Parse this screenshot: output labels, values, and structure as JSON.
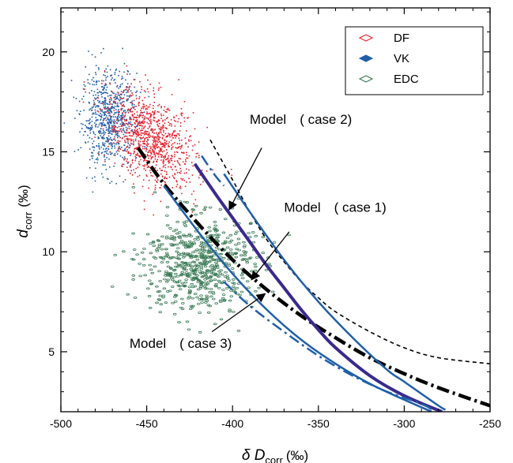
{
  "chart_data": {
    "type": "scatter",
    "xlabel": "δ D",
    "xlabel_sub": "corr",
    "xlabel_unit": "(‰)",
    "ylabel": "d",
    "ylabel_sub": "corr",
    "ylabel_unit": "(‰)",
    "xlim": [
      -500,
      -250
    ],
    "ylim": [
      2,
      22.2
    ],
    "x_ticks": [
      -500,
      -450,
      -400,
      -350,
      -300,
      -250
    ],
    "y_ticks": [
      5,
      10,
      15,
      20
    ],
    "grid": false,
    "legend_position": "top-right",
    "legend": [
      {
        "label": "DF",
        "marker": "open-diamond",
        "color": "#e8202a"
      },
      {
        "label": "VK",
        "marker": "filled-diamond",
        "color": "#1f5fa8"
      },
      {
        "label": "EDC",
        "marker": "open-diamond",
        "color": "#3a7a55"
      }
    ],
    "scatter_clusters": [
      {
        "series": "VK",
        "color": "#1f5fa8",
        "center": [
          -472,
          16.6
        ],
        "spread": [
          8,
          1.2
        ],
        "count": 750
      },
      {
        "series": "DF",
        "color": "#e8202a",
        "center": [
          -447,
          15.6
        ],
        "spread": [
          13,
          1.1
        ],
        "count": 1000
      },
      {
        "series": "EDC",
        "color": "#3a7a55",
        "center": [
          -420,
          9.4
        ],
        "spread": [
          16,
          1.2
        ],
        "count": 650
      }
    ],
    "model_lines": [
      {
        "name": "case 3",
        "style": "dashdot",
        "color": "#000000",
        "width": 4.5,
        "points": [
          [
            -455,
            15.2
          ],
          [
            -440,
            13.4
          ],
          [
            -420,
            11.4
          ],
          [
            -400,
            9.6
          ],
          [
            -380,
            8.1
          ],
          [
            -360,
            6.8
          ],
          [
            -340,
            5.7
          ],
          [
            -320,
            4.7
          ],
          [
            -300,
            3.9
          ],
          [
            -280,
            3.2
          ],
          [
            -250,
            2.3
          ]
        ]
      },
      {
        "name": "case 2",
        "style": "dashed",
        "color": "#000000",
        "width": 1.6,
        "points": [
          [
            -413,
            15.6
          ],
          [
            -400,
            13.6
          ],
          [
            -390,
            12.0
          ],
          [
            -380,
            10.6
          ],
          [
            -370,
            9.5
          ],
          [
            -360,
            8.5
          ],
          [
            -350,
            7.7
          ],
          [
            -340,
            7.0
          ],
          [
            -320,
            6.0
          ],
          [
            -300,
            5.2
          ],
          [
            -280,
            4.7
          ],
          [
            -250,
            4.4
          ]
        ]
      },
      {
        "name": "case 1",
        "style": "solid",
        "color": "#3a2a8c",
        "width": 4,
        "points": [
          [
            -422,
            14.4
          ],
          [
            -410,
            12.9
          ],
          [
            -400,
            11.7
          ],
          [
            -390,
            10.5
          ],
          [
            -380,
            9.3
          ],
          [
            -370,
            8.2
          ],
          [
            -360,
            7.1
          ],
          [
            -350,
            6.1
          ],
          [
            -340,
            5.2
          ],
          [
            -320,
            3.8
          ],
          [
            -300,
            2.8
          ],
          [
            -278,
            2.0
          ]
        ]
      },
      {
        "name": "blue-solid-lower",
        "style": "solid",
        "color": "#1f5fa8",
        "width": 2.5,
        "points": [
          [
            -440,
            13.3
          ],
          [
            -420,
            11.0
          ],
          [
            -400,
            8.9
          ],
          [
            -380,
            7.1
          ],
          [
            -360,
            5.6
          ],
          [
            -340,
            4.4
          ],
          [
            -320,
            3.4
          ],
          [
            -300,
            2.6
          ],
          [
            -284,
            2.0
          ]
        ]
      },
      {
        "name": "blue-dashdot-lower",
        "style": "dashdot",
        "color": "#1f5fa8",
        "width": 2.5,
        "points": [
          [
            -405,
            8.5
          ],
          [
            -390,
            7.3
          ],
          [
            -370,
            6.0
          ],
          [
            -350,
            4.8
          ],
          [
            -330,
            3.8
          ],
          [
            -310,
            3.0
          ],
          [
            -290,
            2.4
          ],
          [
            -282,
            2.0
          ]
        ]
      },
      {
        "name": "blue-solid-upper",
        "style": "solid",
        "color": "#1f5fa8",
        "width": 2.5,
        "points": [
          [
            -405,
            13.9
          ],
          [
            -390,
            12.0
          ],
          [
            -370,
            9.6
          ],
          [
            -350,
            7.5
          ],
          [
            -330,
            5.7
          ],
          [
            -310,
            4.1
          ],
          [
            -300,
            3.5
          ],
          [
            -280,
            2.3
          ],
          [
            -276,
            2.1
          ]
        ]
      },
      {
        "name": "blue-dashdot-upper",
        "style": "dashdot",
        "color": "#1f5fa8",
        "width": 2.5,
        "points": [
          [
            -418,
            14.8
          ],
          [
            -410,
            13.8
          ],
          [
            -405,
            13.3
          ]
        ]
      }
    ],
    "annotations": [
      {
        "text": "Model　( case 2)",
        "label_at": [
          -390,
          16.4
        ],
        "arrow_from": [
          -383,
          15.2
        ],
        "arrow_to": [
          -402,
          12.1
        ]
      },
      {
        "text": "Model　( case 1)",
        "label_at": [
          -370,
          12.0
        ],
        "arrow_from": [
          -367,
          11.0
        ],
        "arrow_to": [
          -389,
          8.6
        ]
      },
      {
        "text": "Model　( case 3)",
        "label_at": [
          -460,
          5.2
        ],
        "arrow_from": [
          -412,
          6.0
        ],
        "arrow_to": [
          -381,
          7.9
        ]
      }
    ]
  }
}
